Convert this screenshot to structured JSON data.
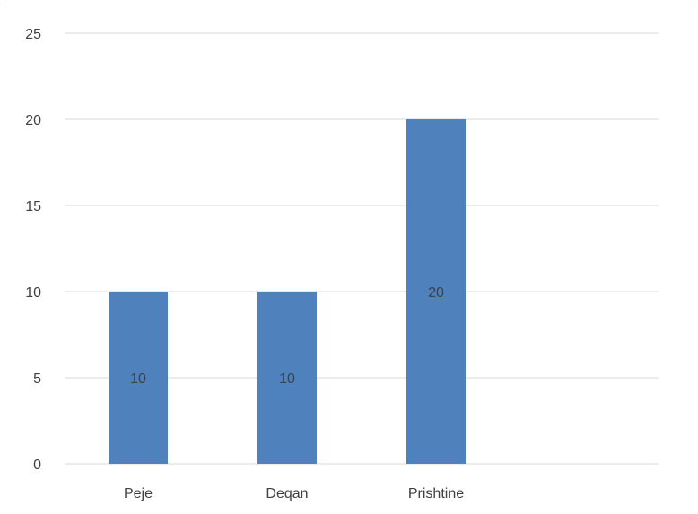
{
  "chart_data": {
    "type": "bar",
    "categories": [
      "Peje",
      "Deqan",
      "Prishtine"
    ],
    "values": [
      10,
      10,
      20
    ],
    "data_labels": [
      "10",
      "10",
      "20"
    ],
    "title": "",
    "xlabel": "",
    "ylabel": "",
    "ylim": [
      0,
      25
    ],
    "yticks": [
      "0",
      "5",
      "10",
      "15",
      "20",
      "25"
    ],
    "grid": true,
    "legend": "none",
    "colors": {
      "bar": "#4f81bd",
      "grid": "#d9d9d9",
      "axis": "#d9d9d9",
      "text": "#404040"
    }
  }
}
